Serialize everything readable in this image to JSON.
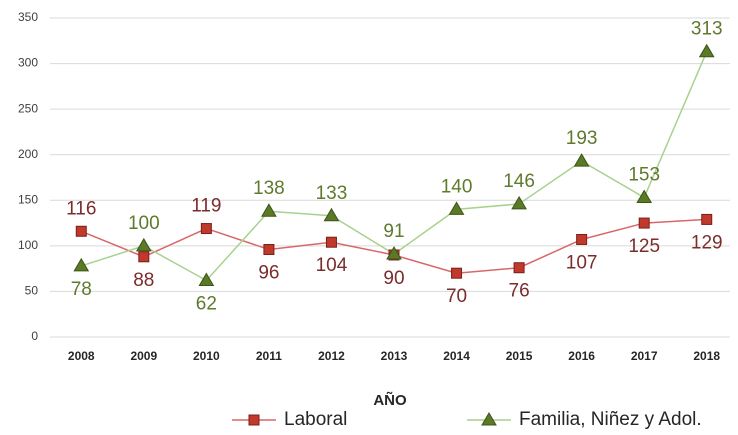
{
  "chart_data": {
    "type": "line",
    "x_label": "AÑO",
    "categories": [
      "2008",
      "2009",
      "2010",
      "2011",
      "2012",
      "2013",
      "2014",
      "2015",
      "2016",
      "2017",
      "2018"
    ],
    "series": [
      {
        "name": "Laboral",
        "color": "#d9676a",
        "marker_color": "#c0392b",
        "label_color": "#7b2c2c",
        "marker": "square",
        "values": [
          116,
          88,
          119,
          96,
          104,
          90,
          70,
          76,
          107,
          125,
          129
        ]
      },
      {
        "name": "Familia, Niñez y Adol.",
        "color": "#a9d18e",
        "marker_color": "#5a7a26",
        "label_color": "#5f7a2e",
        "marker": "triangle",
        "values": [
          78,
          100,
          62,
          138,
          133,
          91,
          140,
          146,
          193,
          153,
          313
        ]
      }
    ],
    "ylim": [
      0,
      350
    ],
    "yticks": [
      0,
      50,
      100,
      150,
      200,
      250,
      300,
      350
    ],
    "grid": true,
    "legend": "bottom"
  }
}
